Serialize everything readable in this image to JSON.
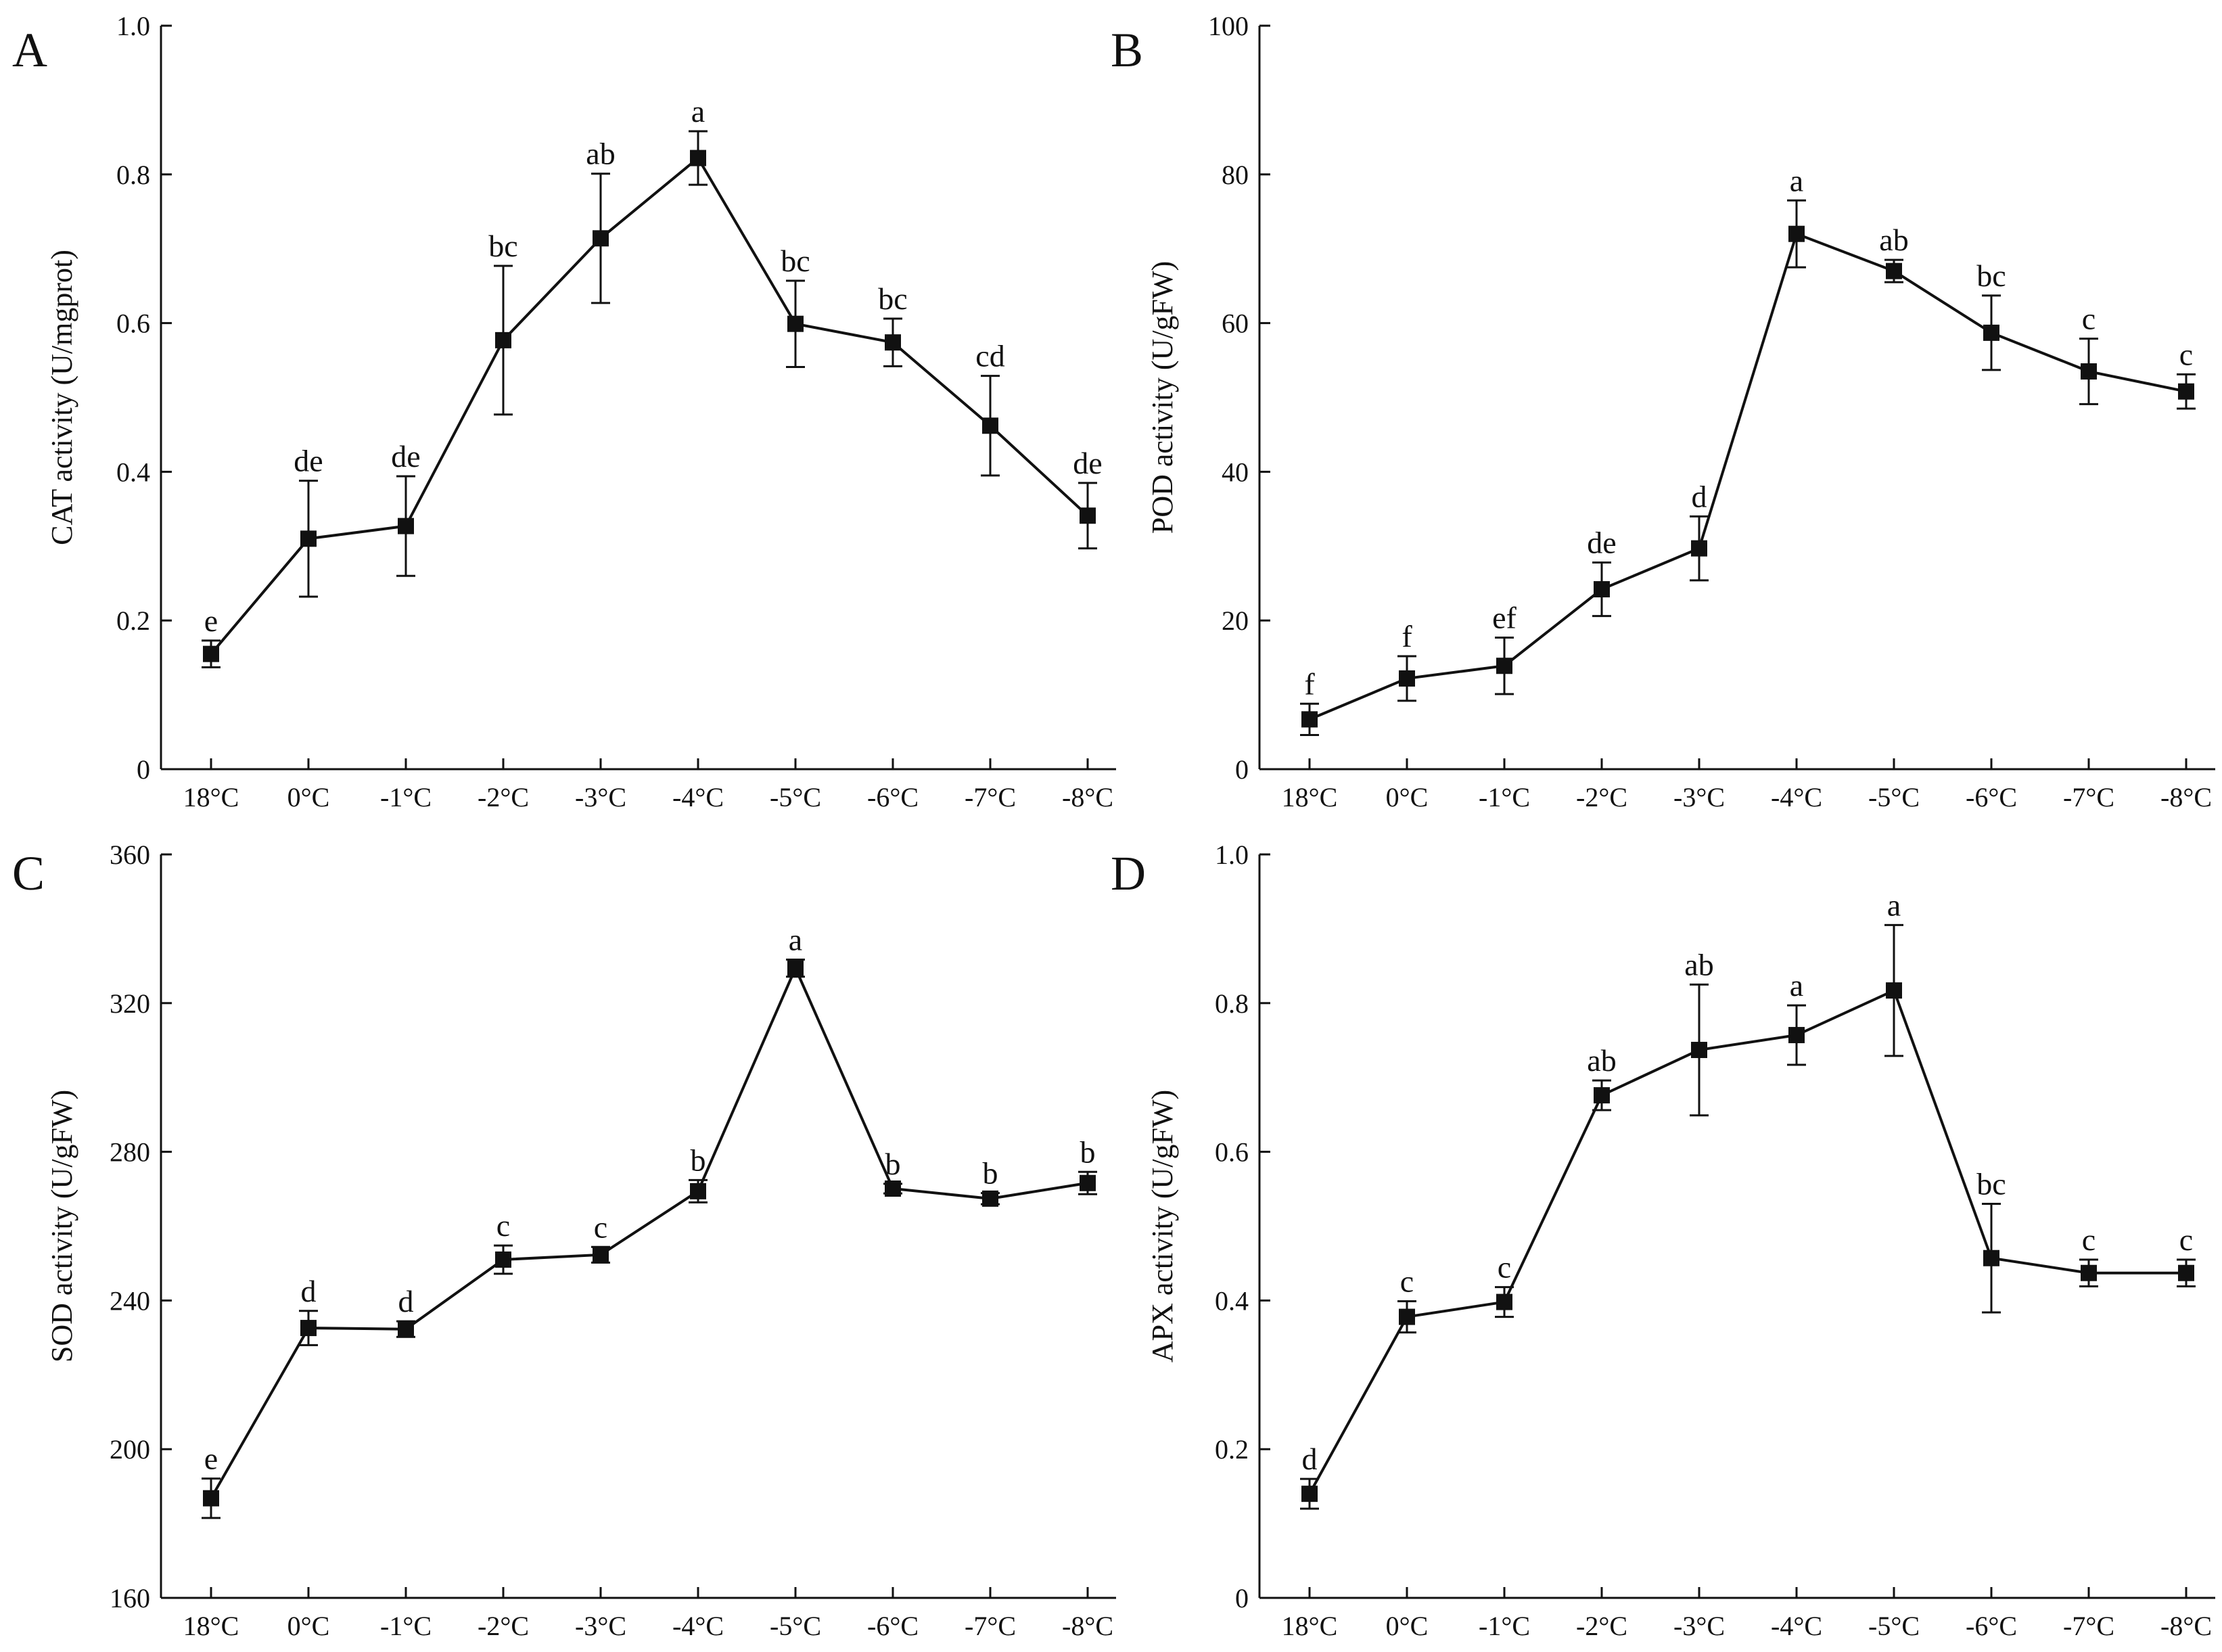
{
  "figure": {
    "colors": {
      "line": "#111111",
      "marker": "#111111",
      "background": "#ffffff"
    }
  },
  "chart_data": [
    {
      "type": "line",
      "panel": "A",
      "title": "",
      "xlabel": "",
      "ylabel": "CAT activity (U/mgprot)",
      "categories": [
        "18°C",
        "0°C",
        "-1°C",
        "-2°C",
        "-3°C",
        "-4°C",
        "-5°C",
        "-6°C",
        "-7°C",
        "-8°C"
      ],
      "ylim": [
        0,
        1.0
      ],
      "yticks": [
        0,
        0.2,
        0.4,
        0.6,
        0.8,
        1.0
      ],
      "ytick_labels": [
        "0",
        "0.2",
        "0.4",
        "0.6",
        "0.8",
        "1.0"
      ],
      "series": [
        {
          "name": "CAT",
          "values": [
            0.155,
            0.31,
            0.327,
            0.577,
            0.714,
            0.822,
            0.599,
            0.574,
            0.462,
            0.341
          ],
          "errors": [
            0.018,
            0.078,
            0.067,
            0.1,
            0.087,
            0.036,
            0.058,
            0.032,
            0.067,
            0.044
          ],
          "labels": [
            "e",
            "de",
            "de",
            "bc",
            "ab",
            "a",
            "bc",
            "bc",
            "cd",
            "de"
          ]
        }
      ],
      "grid": false
    },
    {
      "type": "line",
      "panel": "B",
      "title": "",
      "xlabel": "",
      "ylabel": "POD activity (U/gFW)",
      "categories": [
        "18°C",
        "0°C",
        "-1°C",
        "-2°C",
        "-3°C",
        "-4°C",
        "-5°C",
        "-6°C",
        "-7°C",
        "-8°C"
      ],
      "ylim": [
        0,
        100
      ],
      "yticks": [
        0,
        20,
        40,
        60,
        80,
        100
      ],
      "ytick_labels": [
        "0",
        "20",
        "40",
        "60",
        "80",
        "100"
      ],
      "series": [
        {
          "name": "POD",
          "values": [
            6.7,
            12.2,
            13.9,
            24.2,
            29.7,
            72.0,
            67.0,
            58.7,
            53.5,
            50.8
          ],
          "errors": [
            2.1,
            3.0,
            3.8,
            3.6,
            4.3,
            4.5,
            1.5,
            5.0,
            4.4,
            2.3
          ],
          "labels": [
            "f",
            "f",
            "ef",
            "de",
            "d",
            "a",
            "ab",
            "bc",
            "c",
            "c"
          ]
        }
      ],
      "grid": false
    },
    {
      "type": "line",
      "panel": "C",
      "title": "",
      "xlabel": "",
      "ylabel": "SOD activity (U/gFW)",
      "categories": [
        "18°C",
        "0°C",
        "-1°C",
        "-2°C",
        "-3°C",
        "-4°C",
        "-5°C",
        "-6°C",
        "-7°C",
        "-8°C"
      ],
      "ylim": [
        160,
        360
      ],
      "yticks": [
        160,
        200,
        240,
        280,
        320,
        360
      ],
      "ytick_labels": [
        "160",
        "200",
        "240",
        "280",
        "320",
        "360"
      ],
      "series": [
        {
          "name": "SOD",
          "values": [
            186.8,
            232.6,
            232.3,
            251.0,
            252.3,
            269.4,
            329.4,
            270.1,
            267.4,
            271.6
          ],
          "errors": [
            5.3,
            4.6,
            2.1,
            3.8,
            2.1,
            3.0,
            2.3,
            1.3,
            1.5,
            3.0
          ],
          "labels": [
            "e",
            "d",
            "d",
            "c",
            "c",
            "b",
            "a",
            "b",
            "b",
            "b"
          ]
        }
      ],
      "grid": false
    },
    {
      "type": "line",
      "panel": "D",
      "title": "",
      "xlabel": "",
      "ylabel": "APX activity (U/gFW)",
      "categories": [
        "18°C",
        "0°C",
        "-1°C",
        "-2°C",
        "-3°C",
        "-4°C",
        "-5°C",
        "-6°C",
        "-7°C",
        "-8°C"
      ],
      "ylim": [
        0,
        1.0
      ],
      "yticks": [
        0,
        0.2,
        0.4,
        0.6,
        0.8,
        1.0
      ],
      "ytick_labels": [
        "0",
        "0.2",
        "0.4",
        "0.6",
        "0.8",
        "1.0"
      ],
      "series": [
        {
          "name": "APX",
          "values": [
            0.14,
            0.378,
            0.398,
            0.676,
            0.737,
            0.757,
            0.817,
            0.457,
            0.437,
            0.437
          ],
          "errors": [
            0.02,
            0.021,
            0.02,
            0.02,
            0.088,
            0.04,
            0.088,
            0.073,
            0.018,
            0.018
          ],
          "labels": [
            "d",
            "c",
            "c",
            "ab",
            "ab",
            "a",
            "a",
            "bc",
            "c",
            "c"
          ]
        }
      ],
      "grid": false
    }
  ]
}
